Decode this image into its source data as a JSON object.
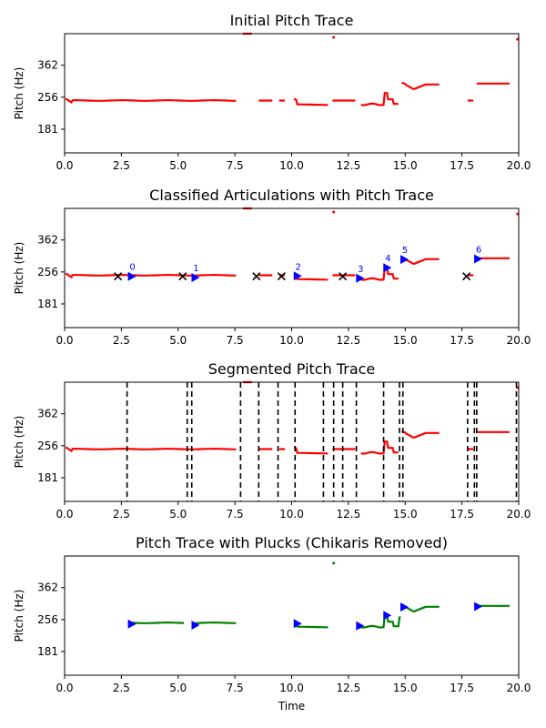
{
  "chart_data": [
    {
      "type": "scatter",
      "title": "Initial Pitch Trace",
      "xlabel": "",
      "ylabel": "Pitch (Hz)",
      "xlim": [
        0,
        20
      ],
      "xticks": [
        "0.0",
        "2.5",
        "5.0",
        "7.5",
        "10.0",
        "12.5",
        "15.0",
        "17.5",
        "20.0"
      ],
      "yticks": [
        {
          "value": 181,
          "label": "181"
        },
        {
          "value": 256,
          "label": "256"
        },
        {
          "value": 362,
          "label": "362"
        }
      ],
      "show_pitch": true,
      "trace_color": "#ff0000",
      "outliers": [
        {
          "x": 11.85,
          "y": 490
        },
        {
          "x": 19.95,
          "y": 480
        }
      ]
    },
    {
      "type": "scatter",
      "title": "Classified Articulations with Pitch Trace",
      "xlabel": "",
      "ylabel": "Pitch (Hz)",
      "xlim": [
        0,
        20
      ],
      "xticks": [
        "0.0",
        "2.5",
        "5.0",
        "7.5",
        "10.0",
        "12.5",
        "15.0",
        "17.5",
        "20.0"
      ],
      "yticks": [
        {
          "value": 181,
          "label": "181"
        },
        {
          "value": 256,
          "label": "256"
        },
        {
          "value": 362,
          "label": "362"
        }
      ],
      "show_pitch": true,
      "trace_color": "#ff0000",
      "outliers": [
        {
          "x": 11.85,
          "y": 490
        },
        {
          "x": 19.95,
          "y": 480
        }
      ],
      "plucks": [
        {
          "x": 2.95,
          "y": 244,
          "label": "0"
        },
        {
          "x": 5.75,
          "y": 241,
          "label": "1"
        },
        {
          "x": 10.25,
          "y": 245,
          "label": "2"
        },
        {
          "x": 13.0,
          "y": 239,
          "label": "3"
        },
        {
          "x": 14.2,
          "y": 268,
          "label": "4"
        },
        {
          "x": 14.95,
          "y": 293,
          "label": "5"
        },
        {
          "x": 18.2,
          "y": 295,
          "label": "6"
        }
      ],
      "chikaris": [
        {
          "x": 2.35,
          "y": 244
        },
        {
          "x": 5.2,
          "y": 244
        },
        {
          "x": 8.45,
          "y": 244
        },
        {
          "x": 9.55,
          "y": 244
        },
        {
          "x": 12.25,
          "y": 244
        },
        {
          "x": 17.7,
          "y": 244
        }
      ],
      "pluck_color": "#0000ff",
      "chikari_color": "#000000"
    },
    {
      "type": "scatter",
      "title": "Segmented Pitch Trace",
      "xlabel": "",
      "ylabel": "Pitch (Hz)",
      "xlim": [
        0,
        20
      ],
      "xticks": [
        "0.0",
        "2.5",
        "5.0",
        "7.5",
        "10.0",
        "12.5",
        "15.0",
        "17.5",
        "20.0"
      ],
      "yticks": [
        {
          "value": 181,
          "label": "181"
        },
        {
          "value": 256,
          "label": "256"
        },
        {
          "value": 362,
          "label": "362"
        }
      ],
      "show_pitch": true,
      "trace_color": "#ff0000",
      "outliers": [
        {
          "x": 19.95,
          "y": 480
        }
      ],
      "segments": [
        2.75,
        5.4,
        5.6,
        7.75,
        8.55,
        9.4,
        10.15,
        11.4,
        11.85,
        12.25,
        12.85,
        14.05,
        14.75,
        14.9,
        17.75,
        18.05,
        18.15,
        19.9
      ],
      "segment_color": "#000000"
    },
    {
      "type": "scatter",
      "title": "Pitch Trace with Plucks (Chikaris Removed)",
      "xlabel": "Time",
      "ylabel": "Pitch (Hz)",
      "xlim": [
        0,
        20
      ],
      "xticks": [
        "0.0",
        "2.5",
        "5.0",
        "7.5",
        "10.0",
        "12.5",
        "15.0",
        "17.5",
        "20.0"
      ],
      "yticks": [
        {
          "value": 181,
          "label": "181"
        },
        {
          "value": 256,
          "label": "256"
        },
        {
          "value": 362,
          "label": "362"
        }
      ],
      "show_pitch": true,
      "trace_color": "#008000",
      "outliers": [
        {
          "x": 11.85,
          "y": 472
        }
      ],
      "plucks": [
        {
          "x": 2.95,
          "y": 244
        },
        {
          "x": 5.75,
          "y": 241
        },
        {
          "x": 10.25,
          "y": 245
        },
        {
          "x": 13.0,
          "y": 239
        },
        {
          "x": 14.2,
          "y": 268
        },
        {
          "x": 14.95,
          "y": 293
        },
        {
          "x": 18.2,
          "y": 295
        }
      ],
      "pluck_color": "#0000ff",
      "pitch_segments": [
        {
          "x0": 2.95,
          "x1": 5.25,
          "y": 246
        },
        {
          "x0": 5.75,
          "x1": 7.55,
          "y": 246
        },
        {
          "x0": 10.2,
          "x1": 11.65,
          "y": 236
        },
        {
          "x0": 13.0,
          "x1": 14.15,
          "y": 236
        },
        {
          "x0": 14.2,
          "x1": 14.85,
          "y": 262
        },
        {
          "x0": 14.9,
          "x1": 16.55,
          "y": 292
        },
        {
          "x0": 18.2,
          "x1": 19.65,
          "y": 296
        }
      ]
    }
  ]
}
